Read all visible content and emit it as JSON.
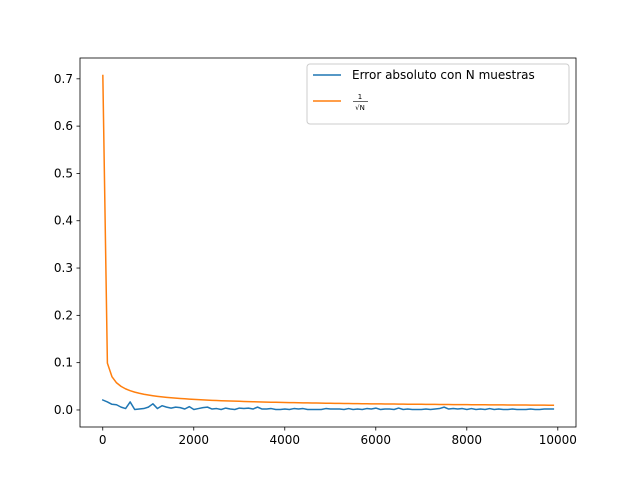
{
  "chart_data": {
    "type": "line",
    "title": "",
    "xlabel": "",
    "ylabel": "",
    "xlim": [
      -500,
      10400
    ],
    "ylim": [
      -0.036,
      0.744
    ],
    "xticks": [
      0,
      2000,
      4000,
      6000,
      8000,
      10000
    ],
    "xtick_labels": [
      "0",
      "2000",
      "4000",
      "6000",
      "8000",
      "10000"
    ],
    "yticks": [
      0.0,
      0.1,
      0.2,
      0.3,
      0.4,
      0.5,
      0.6,
      0.7
    ],
    "ytick_labels": [
      "0.0",
      "0.1",
      "0.2",
      "0.3",
      "0.4",
      "0.5",
      "0.6",
      "0.7"
    ],
    "grid": false,
    "legend_position": "top-right",
    "legend": {
      "series1_label": "Error absoluto con N muestras",
      "series2_numerator": "1",
      "series2_denominator": "√N"
    },
    "x": [
      2,
      102,
      202,
      302,
      402,
      502,
      602,
      702,
      802,
      902,
      1002,
      1102,
      1202,
      1302,
      1402,
      1502,
      1602,
      1702,
      1802,
      1902,
      2002,
      2102,
      2202,
      2302,
      2402,
      2502,
      2602,
      2702,
      2802,
      2902,
      3002,
      3102,
      3202,
      3302,
      3402,
      3502,
      3602,
      3702,
      3802,
      3902,
      4002,
      4102,
      4202,
      4302,
      4402,
      4502,
      4602,
      4702,
      4802,
      4902,
      5002,
      5102,
      5202,
      5302,
      5402,
      5502,
      5602,
      5702,
      5802,
      5902,
      6002,
      6102,
      6202,
      6302,
      6402,
      6502,
      6602,
      6702,
      6802,
      6902,
      7002,
      7102,
      7202,
      7302,
      7402,
      7502,
      7602,
      7702,
      7802,
      7902,
      8002,
      8102,
      8202,
      8302,
      8402,
      8502,
      8602,
      8702,
      8802,
      8902,
      9002,
      9102,
      9202,
      9302,
      9402,
      9502,
      9602,
      9702,
      9802,
      9902
    ],
    "series": [
      {
        "name": "Error absoluto con N muestras",
        "color": "#1f77b4",
        "values": [
          0.021,
          0.017,
          0.012,
          0.011,
          0.006,
          0.003,
          0.017,
          0.001,
          0.002,
          0.003,
          0.006,
          0.013,
          0.003,
          0.009,
          0.006,
          0.004,
          0.006,
          0.005,
          0.002,
          0.007,
          0.001,
          0.003,
          0.005,
          0.006,
          0.002,
          0.003,
          0.001,
          0.004,
          0.002,
          0.001,
          0.004,
          0.003,
          0.004,
          0.002,
          0.006,
          0.002,
          0.002,
          0.003,
          0.001,
          0.001,
          0.002,
          0.001,
          0.003,
          0.002,
          0.003,
          0.001,
          0.001,
          0.001,
          0.001,
          0.003,
          0.002,
          0.002,
          0.002,
          0.001,
          0.003,
          0.001,
          0.002,
          0.001,
          0.003,
          0.002,
          0.004,
          0.001,
          0.002,
          0.002,
          0.001,
          0.004,
          0.001,
          0.002,
          0.001,
          0.001,
          0.001,
          0.002,
          0.001,
          0.002,
          0.003,
          0.006,
          0.002,
          0.003,
          0.002,
          0.003,
          0.001,
          0.003,
          0.001,
          0.002,
          0.001,
          0.003,
          0.001,
          0.002,
          0.001,
          0.001,
          0.002,
          0.001,
          0.001,
          0.001,
          0.002,
          0.001,
          0.001,
          0.002,
          0.002,
          0.002
        ]
      },
      {
        "name": "1/√N",
        "color": "#ff7f0e",
        "values": [
          0.7071,
          0.099,
          0.0704,
          0.0575,
          0.0499,
          0.0446,
          0.0407,
          0.0377,
          0.0353,
          0.0333,
          0.0316,
          0.0301,
          0.0288,
          0.0277,
          0.0267,
          0.0258,
          0.025,
          0.0242,
          0.0236,
          0.0229,
          0.0223,
          0.0218,
          0.0213,
          0.0208,
          0.0204,
          0.02,
          0.0196,
          0.0192,
          0.0189,
          0.0186,
          0.0183,
          0.018,
          0.0177,
          0.0174,
          0.0171,
          0.0169,
          0.0167,
          0.0164,
          0.0162,
          0.016,
          0.0158,
          0.0156,
          0.0154,
          0.0152,
          0.0151,
          0.0149,
          0.0147,
          0.0146,
          0.0144,
          0.0143,
          0.0141,
          0.014,
          0.0139,
          0.0137,
          0.0136,
          0.0135,
          0.0134,
          0.0132,
          0.0131,
          0.013,
          0.0129,
          0.0128,
          0.0127,
          0.0126,
          0.0125,
          0.0124,
          0.0123,
          0.0122,
          0.0121,
          0.012,
          0.012,
          0.0119,
          0.0118,
          0.0117,
          0.0116,
          0.0115,
          0.0115,
          0.0114,
          0.0113,
          0.0112,
          0.0112,
          0.0111,
          0.011,
          0.011,
          0.0109,
          0.0108,
          0.0108,
          0.0107,
          0.0107,
          0.0106,
          0.0105,
          0.0105,
          0.0104,
          0.0104,
          0.0103,
          0.0103,
          0.0102,
          0.0102,
          0.0101,
          0.01
        ]
      }
    ]
  }
}
